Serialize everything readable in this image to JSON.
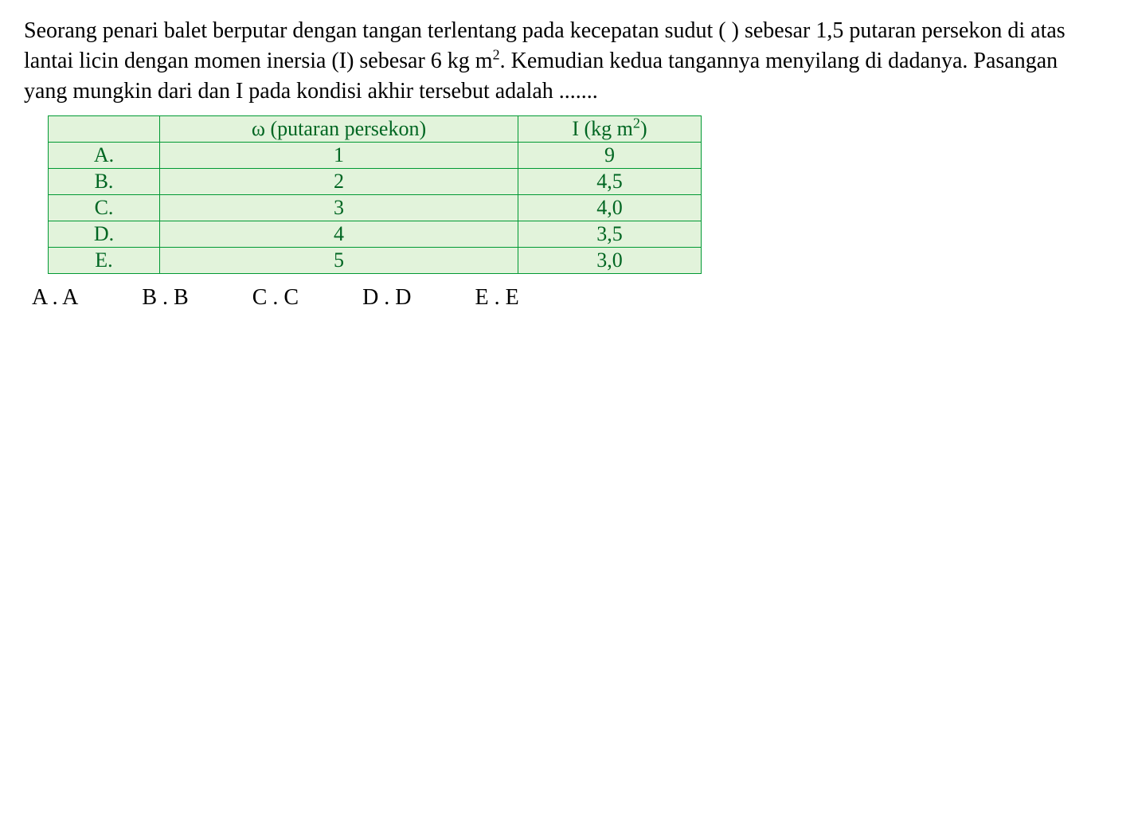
{
  "question": {
    "text_pre": "Seorang penari balet berputar dengan tangan terlentang pada kecepatan sudut ( ) sebesar 1,5 putaran persekon di atas lantai licin dengan momen inersia (I) sebesar 6 kg m",
    "text_sup": "2",
    "text_post": ". Kemudian kedua tangannya menyilang di dadanya. Pasangan yang mungkin dari dan I pada kondisi akhir tersebut adalah ......."
  },
  "table": {
    "background_color": "#e2f3db",
    "border_color": "#009933",
    "text_color": "#006622",
    "font_size": 26,
    "headers": {
      "label": "",
      "omega": "ω (putaran persekon)",
      "inertia_pre": "I (kg m",
      "inertia_sup": "2",
      "inertia_post": ")"
    },
    "rows": [
      {
        "label": "A.",
        "omega": "1",
        "inertia": "9"
      },
      {
        "label": "B.",
        "omega": "2",
        "inertia": "4,5"
      },
      {
        "label": "C.",
        "omega": "3",
        "inertia": "4,0"
      },
      {
        "label": "D.",
        "omega": "4",
        "inertia": "3,5"
      },
      {
        "label": "E.",
        "omega": "5",
        "inertia": "3,0"
      }
    ]
  },
  "options": [
    {
      "label": "A . A"
    },
    {
      "label": "B . B"
    },
    {
      "label": "C . C"
    },
    {
      "label": "D . D"
    },
    {
      "label": "E . E"
    }
  ],
  "styling": {
    "body_bg": "#ffffff",
    "text_color": "#000000",
    "question_font_size": 28,
    "option_font_size": 28
  }
}
